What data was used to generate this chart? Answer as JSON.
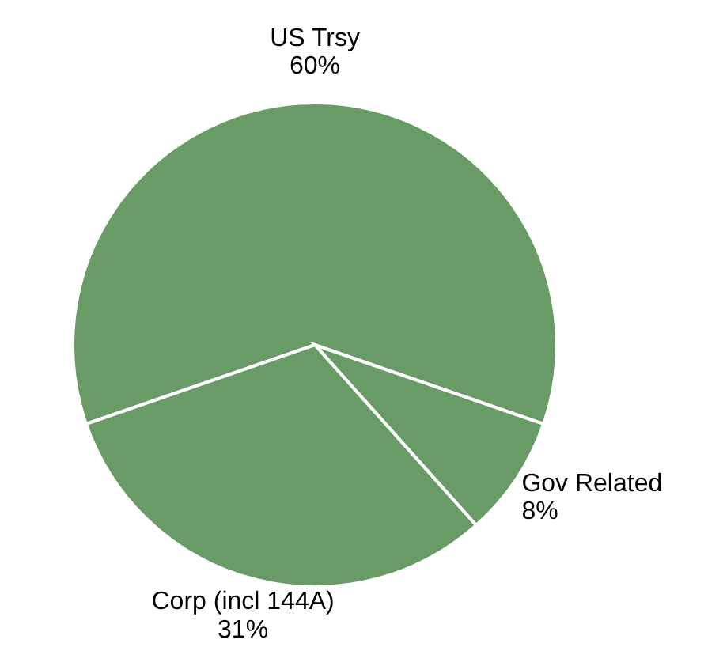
{
  "chart_data": {
    "type": "pie",
    "categories": [
      "US Trsy",
      "Gov Related",
      "Corp (incl 144A)"
    ],
    "values": [
      60,
      8,
      31
    ],
    "colors": [
      "#699b67",
      "#699b67",
      "#699b67"
    ],
    "value_labels": [
      "60%",
      "8%",
      "31%"
    ]
  }
}
